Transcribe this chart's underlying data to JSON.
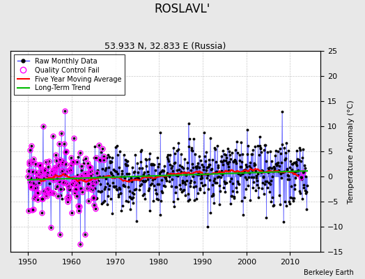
{
  "title": "ROSLAVL'",
  "subtitle": "53.933 N, 32.833 E (Russia)",
  "ylabel": "Temperature Anomaly (°C)",
  "credit": "Berkeley Earth",
  "xlim": [
    1946,
    2017
  ],
  "ylim": [
    -15,
    25
  ],
  "yticks": [
    -15,
    -10,
    -5,
    0,
    5,
    10,
    15,
    20,
    25
  ],
  "xticks": [
    1950,
    1960,
    1970,
    1980,
    1990,
    2000,
    2010
  ],
  "start_year": 1950,
  "end_year": 2014,
  "raw_line_color": "#4444ff",
  "raw_dot_color": "#000000",
  "qc_color": "#ff00ff",
  "moving_avg_color": "#ff0000",
  "trend_color": "#00bb00",
  "background_color": "#e8e8e8",
  "plot_bg_color": "#ffffff",
  "title_fontsize": 12,
  "subtitle_fontsize": 9,
  "axis_fontsize": 8,
  "ylabel_fontsize": 8
}
